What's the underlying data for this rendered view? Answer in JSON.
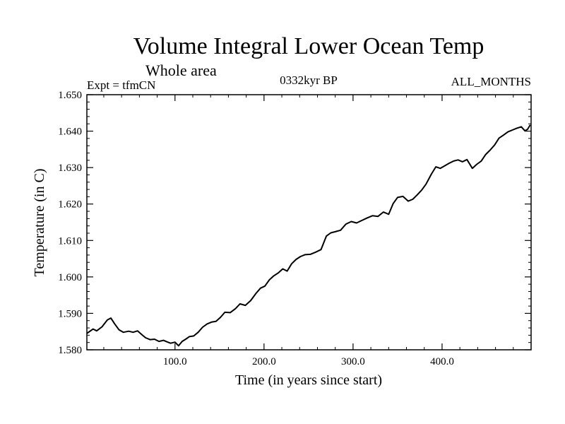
{
  "chart_data": {
    "type": "line",
    "title": "Volume Integral Lower Ocean Temp",
    "subtitle": "Whole area",
    "experiment": "Expt = tfmCN",
    "period": "0332kyr BP",
    "months": "ALL_MONTHS",
    "xlabel": "Time (in years since start)",
    "ylabel": "Temperature (in C)",
    "xlim": [
      1,
      500
    ],
    "ylim": [
      1.58,
      1.65
    ],
    "x_ticks": [
      100,
      200,
      300,
      400
    ],
    "x_tick_labels": [
      "100.0",
      "200.0",
      "300.0",
      "400.0"
    ],
    "y_ticks": [
      1.58,
      1.59,
      1.6,
      1.61,
      1.62,
      1.63,
      1.64,
      1.65
    ],
    "y_tick_labels": [
      "1.580",
      "1.590",
      "1.600",
      "1.610",
      "1.620",
      "1.630",
      "1.640",
      "1.650"
    ],
    "grid": false,
    "series": [
      {
        "x": [
          1,
          8,
          12,
          18,
          24,
          28,
          32,
          37,
          42,
          48,
          53,
          58,
          63,
          67,
          72,
          77,
          82,
          87,
          91,
          95,
          100,
          104,
          108,
          112,
          116,
          121,
          126,
          131,
          136,
          141,
          146,
          151,
          156,
          162,
          168,
          173,
          179,
          185,
          191,
          196,
          201,
          206,
          211,
          216,
          221,
          226,
          231,
          236,
          241,
          246,
          252,
          258,
          264,
          270,
          275,
          280,
          286,
          292,
          298,
          304,
          310,
          316,
          322,
          328,
          334,
          340,
          345,
          350,
          356,
          362,
          367,
          372,
          377,
          382,
          388,
          393,
          398,
          403,
          408,
          413,
          418,
          423,
          428,
          434,
          439,
          444,
          449,
          454,
          459,
          464,
          469,
          474,
          479,
          484,
          489,
          493,
          496,
          499
        ],
        "y": [
          1.5845,
          1.5857,
          1.5852,
          1.5863,
          1.5882,
          1.5887,
          1.5872,
          1.5855,
          1.5848,
          1.5851,
          1.5848,
          1.5852,
          1.5841,
          1.5833,
          1.5828,
          1.5829,
          1.5823,
          1.5826,
          1.5822,
          1.5818,
          1.5821,
          1.5811,
          1.5823,
          1.5829,
          1.5836,
          1.5838,
          1.5848,
          1.5862,
          1.5871,
          1.5876,
          1.5878,
          1.5889,
          1.5903,
          1.5902,
          1.5913,
          1.5926,
          1.5922,
          1.5935,
          1.5955,
          1.5969,
          1.5975,
          1.5992,
          1.6003,
          1.6011,
          1.6022,
          1.6016,
          1.6036,
          1.6048,
          1.6056,
          1.6061,
          1.6062,
          1.6068,
          1.6075,
          1.6112,
          1.6121,
          1.6124,
          1.6128,
          1.6145,
          1.6152,
          1.6148,
          1.6155,
          1.6162,
          1.6168,
          1.6166,
          1.6178,
          1.6172,
          1.6201,
          1.6218,
          1.6221,
          1.6208,
          1.6213,
          1.6225,
          1.6238,
          1.6255,
          1.6282,
          1.6302,
          1.6298,
          1.6305,
          1.6312,
          1.6318,
          1.6321,
          1.6316,
          1.6322,
          1.6298,
          1.6309,
          1.6318,
          1.6336,
          1.6348,
          1.6362,
          1.6381,
          1.6389,
          1.6398,
          1.6403,
          1.6408,
          1.6412,
          1.6401,
          1.6405,
          1.6417
        ]
      }
    ]
  }
}
